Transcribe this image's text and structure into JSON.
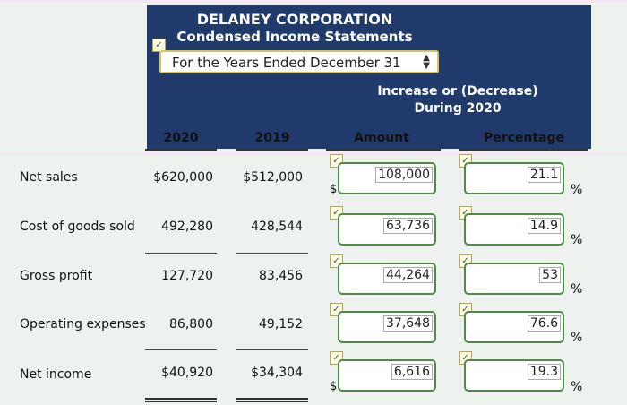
{
  "header": {
    "company": "DELANEY CORPORATION",
    "statement": "Condensed Income Statements",
    "period_selected": "For the Years Ended December 31",
    "increase_line1": "Increase or (Decrease)",
    "increase_line2": "During 2020"
  },
  "columns": {
    "y2020": "2020",
    "y2019": "2019",
    "amount": "Amount",
    "percentage": "Percentage"
  },
  "rows": [
    {
      "label": "Net sales",
      "v2020": "$620,000",
      "v2019": "$512,000",
      "amount": "108,000",
      "percent": "21.1"
    },
    {
      "label": "Cost of goods sold",
      "v2020": "492,280",
      "v2019": "428,544",
      "amount": "63,736",
      "percent": "14.9"
    },
    {
      "label": "Gross profit",
      "v2020": "127,720",
      "v2019": "83,456",
      "amount": "44,264",
      "percent": "53"
    },
    {
      "label": "Operating expenses",
      "v2020": "86,800",
      "v2019": "49,152",
      "amount": "37,648",
      "percent": "76.6"
    },
    {
      "label": "Net income",
      "v2020": "$40,920",
      "v2019": "$34,304",
      "amount": "6,616",
      "percent": "19.3"
    }
  ],
  "symbols": {
    "dollar": "$",
    "percent": "%",
    "check": "✓",
    "select_up": "▲",
    "select_down": "▼"
  },
  "colors": {
    "header_bg": "#1f3a6b",
    "field_border": "#4f8a48",
    "select_border": "#d8c35a"
  }
}
